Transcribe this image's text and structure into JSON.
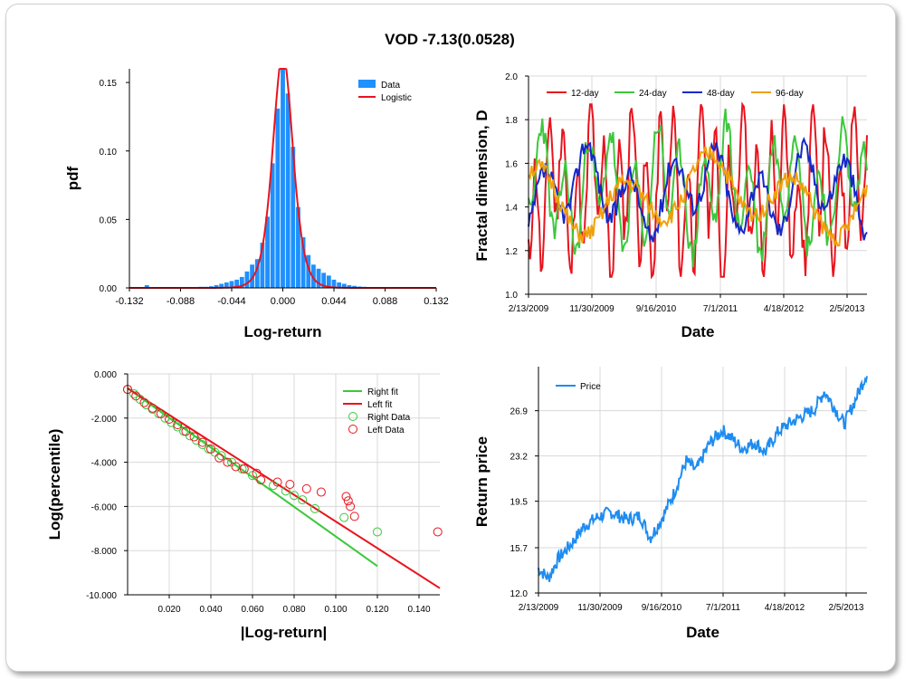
{
  "title": "VOD -7.13(0.0528)",
  "chart_data": [
    {
      "type": "bar",
      "panel": "histogram",
      "xlabel": "Log-return",
      "ylabel": "pdf",
      "xlim": [
        -0.132,
        0.132
      ],
      "ylim": [
        0,
        0.16
      ],
      "xticks": [
        "-0.132",
        "-0.088",
        "-0.044",
        "0.000",
        "0.044",
        "0.088",
        "0.132"
      ],
      "xtick_values": [
        -0.132,
        -0.088,
        -0.044,
        0.0,
        0.044,
        0.088,
        0.132
      ],
      "yticks": [
        "0.00",
        "0.05",
        "0.10",
        "0.15"
      ],
      "ytick_values": [
        0,
        0.05,
        0.1,
        0.15
      ],
      "legend": [
        "Data",
        "Logistic"
      ],
      "legend_position": "top-right",
      "colors": {
        "bars": "#1e90ff",
        "fit": "#e8141e"
      },
      "bin_width": 0.0044,
      "bins": [
        {
          "x": -0.117,
          "h": 0.002
        },
        {
          "x": -0.0792,
          "h": 0.0004
        },
        {
          "x": -0.0704,
          "h": 0.0008
        },
        {
          "x": -0.066,
          "h": 0.0008
        },
        {
          "x": -0.0616,
          "h": 0.0012
        },
        {
          "x": -0.0572,
          "h": 0.002
        },
        {
          "x": -0.0528,
          "h": 0.003
        },
        {
          "x": -0.0484,
          "h": 0.004
        },
        {
          "x": -0.044,
          "h": 0.005
        },
        {
          "x": -0.0396,
          "h": 0.006
        },
        {
          "x": -0.0352,
          "h": 0.008
        },
        {
          "x": -0.0308,
          "h": 0.012
        },
        {
          "x": -0.0264,
          "h": 0.017
        },
        {
          "x": -0.022,
          "h": 0.021
        },
        {
          "x": -0.0176,
          "h": 0.033
        },
        {
          "x": -0.0132,
          "h": 0.052
        },
        {
          "x": -0.0088,
          "h": 0.091
        },
        {
          "x": -0.0044,
          "h": 0.131
        },
        {
          "x": 0.0,
          "h": 0.162
        },
        {
          "x": 0.0044,
          "h": 0.142
        },
        {
          "x": 0.0088,
          "h": 0.103
        },
        {
          "x": 0.0132,
          "h": 0.059
        },
        {
          "x": 0.0176,
          "h": 0.037
        },
        {
          "x": 0.022,
          "h": 0.024
        },
        {
          "x": 0.0264,
          "h": 0.017
        },
        {
          "x": 0.0308,
          "h": 0.014
        },
        {
          "x": 0.0352,
          "h": 0.011
        },
        {
          "x": 0.0396,
          "h": 0.009
        },
        {
          "x": 0.044,
          "h": 0.006
        },
        {
          "x": 0.0484,
          "h": 0.004
        },
        {
          "x": 0.0528,
          "h": 0.003
        },
        {
          "x": 0.0572,
          "h": 0.002
        },
        {
          "x": 0.0616,
          "h": 0.0015
        },
        {
          "x": 0.066,
          "h": 0.001
        },
        {
          "x": 0.0704,
          "h": 0.0008
        },
        {
          "x": 0.0792,
          "h": 0.0004
        },
        {
          "x": 0.088,
          "h": 0.0004
        }
      ],
      "logistic_fit": {
        "mu": 0.0,
        "s": 0.0058,
        "scale": 0.9
      }
    },
    {
      "type": "line",
      "panel": "fractal-dimension",
      "xlabel": "Date",
      "ylabel": "Fractal dimension, D",
      "ylim": [
        1.0,
        2.0
      ],
      "yticks": [
        "1.0",
        "1.2",
        "1.4",
        "1.6",
        "1.8",
        "2.0"
      ],
      "ytick_values": [
        1.0,
        1.2,
        1.4,
        1.6,
        1.8,
        2.0
      ],
      "xticks": [
        "2/13/2009",
        "11/30/2009",
        "9/16/2010",
        "7/1/2011",
        "4/18/2012",
        "2/5/2013"
      ],
      "legend_position": "top-left",
      "series": [
        {
          "name": "12-day",
          "color": "#e8141e",
          "mean": 1.47,
          "amp": 0.27,
          "period": 9,
          "seed": 11
        },
        {
          "name": "24-day",
          "color": "#3cc83c",
          "mean": 1.48,
          "amp": 0.2,
          "period": 15,
          "seed": 23
        },
        {
          "name": "48-day",
          "color": "#1428c8",
          "mean": 1.47,
          "amp": 0.14,
          "period": 28,
          "seed": 37
        },
        {
          "name": "96-day",
          "color": "#f0a00a",
          "mean": 1.45,
          "amp": 0.12,
          "period": 55,
          "seed": 51
        }
      ]
    },
    {
      "type": "scatter",
      "panel": "tail-fit",
      "xlabel": "|Log-return|",
      "ylabel": "Log(percentile)",
      "xlim": [
        0,
        0.15
      ],
      "ylim": [
        -10,
        0
      ],
      "xticks": [
        "0.020",
        "0.040",
        "0.060",
        "0.080",
        "0.100",
        "0.120",
        "0.140"
      ],
      "xtick_values": [
        0.02,
        0.04,
        0.06,
        0.08,
        0.1,
        0.12,
        0.14
      ],
      "yticks": [
        "0.000",
        "-2.000",
        "-4.000",
        "-6.000",
        "-8.000",
        "-10.000"
      ],
      "ytick_values": [
        0,
        -2,
        -4,
        -6,
        -8,
        -10
      ],
      "legend": [
        "Right fit",
        "Left fit",
        "Right Data",
        "Left Data"
      ],
      "legend_position": "top-right",
      "colors": {
        "right": "#3cc83c",
        "left": "#e8141e"
      },
      "right_fit": [
        [
          0.0,
          -0.65
        ],
        [
          0.12,
          -8.7
        ]
      ],
      "left_fit": [
        [
          0.0,
          -0.65
        ],
        [
          0.15,
          -9.7
        ]
      ],
      "right_data": [
        [
          0.0,
          -0.7
        ],
        [
          0.003,
          -0.9
        ],
        [
          0.006,
          -1.15
        ],
        [
          0.009,
          -1.4
        ],
        [
          0.012,
          -1.6
        ],
        [
          0.015,
          -1.8
        ],
        [
          0.018,
          -2.0
        ],
        [
          0.021,
          -2.2
        ],
        [
          0.024,
          -2.4
        ],
        [
          0.027,
          -2.6
        ],
        [
          0.03,
          -2.8
        ],
        [
          0.033,
          -3.0
        ],
        [
          0.036,
          -3.2
        ],
        [
          0.039,
          -3.4
        ],
        [
          0.042,
          -3.55
        ],
        [
          0.045,
          -3.7
        ],
        [
          0.05,
          -4.0
        ],
        [
          0.055,
          -4.3
        ],
        [
          0.06,
          -4.6
        ],
        [
          0.064,
          -4.8
        ],
        [
          0.07,
          -5.05
        ],
        [
          0.076,
          -5.3
        ],
        [
          0.08,
          -5.5
        ],
        [
          0.084,
          -5.7
        ],
        [
          0.09,
          -6.1
        ],
        [
          0.104,
          -6.5
        ],
        [
          0.12,
          -7.15
        ]
      ],
      "left_data": [
        [
          0.0,
          -0.7
        ],
        [
          0.004,
          -1.0
        ],
        [
          0.008,
          -1.3
        ],
        [
          0.012,
          -1.55
        ],
        [
          0.016,
          -1.8
        ],
        [
          0.02,
          -2.05
        ],
        [
          0.024,
          -2.3
        ],
        [
          0.028,
          -2.6
        ],
        [
          0.032,
          -2.85
        ],
        [
          0.036,
          -3.1
        ],
        [
          0.04,
          -3.4
        ],
        [
          0.044,
          -3.8
        ],
        [
          0.048,
          -4.0
        ],
        [
          0.052,
          -4.2
        ],
        [
          0.056,
          -4.3
        ],
        [
          0.062,
          -4.5
        ],
        [
          0.064,
          -4.8
        ],
        [
          0.072,
          -4.9
        ],
        [
          0.078,
          -5.0
        ],
        [
          0.086,
          -5.2
        ],
        [
          0.093,
          -5.35
        ],
        [
          0.105,
          -5.55
        ],
        [
          0.106,
          -5.75
        ],
        [
          0.107,
          -6.0
        ],
        [
          0.109,
          -6.45
        ],
        [
          0.149,
          -7.15
        ]
      ]
    },
    {
      "type": "line",
      "panel": "price",
      "xlabel": "Date",
      "ylabel": "Return price",
      "ylim": [
        12.0,
        30.5
      ],
      "yticks": [
        "12.0",
        "15.7",
        "19.5",
        "23.2",
        "26.9"
      ],
      "ytick_values": [
        12.0,
        15.7,
        19.5,
        23.2,
        26.9
      ],
      "xticks": [
        "2/13/2009",
        "11/30/2009",
        "9/16/2010",
        "7/1/2011",
        "4/18/2012",
        "2/5/2013"
      ],
      "legend_position": "top-left",
      "series": [
        {
          "name": "Price",
          "color": "#1e8cf0",
          "anchors": [
            [
              0,
              14.0
            ],
            [
              0.03,
              13.2
            ],
            [
              0.06,
              14.8
            ],
            [
              0.1,
              16.0
            ],
            [
              0.14,
              17.5
            ],
            [
              0.18,
              18.2
            ],
            [
              0.22,
              18.6
            ],
            [
              0.27,
              18.0
            ],
            [
              0.31,
              18.3
            ],
            [
              0.34,
              16.5
            ],
            [
              0.37,
              17.8
            ],
            [
              0.41,
              20.0
            ],
            [
              0.45,
              22.8
            ],
            [
              0.48,
              22.0
            ],
            [
              0.52,
              24.2
            ],
            [
              0.56,
              25.3
            ],
            [
              0.59,
              24.6
            ],
            [
              0.62,
              23.8
            ],
            [
              0.66,
              24.3
            ],
            [
              0.69,
              23.5
            ],
            [
              0.73,
              25.2
            ],
            [
              0.76,
              25.8
            ],
            [
              0.8,
              26.4
            ],
            [
              0.84,
              27.0
            ],
            [
              0.87,
              28.5
            ],
            [
              0.9,
              27.2
            ],
            [
              0.93,
              25.8
            ],
            [
              0.96,
              27.5
            ],
            [
              1.0,
              30.0
            ]
          ]
        }
      ]
    }
  ]
}
